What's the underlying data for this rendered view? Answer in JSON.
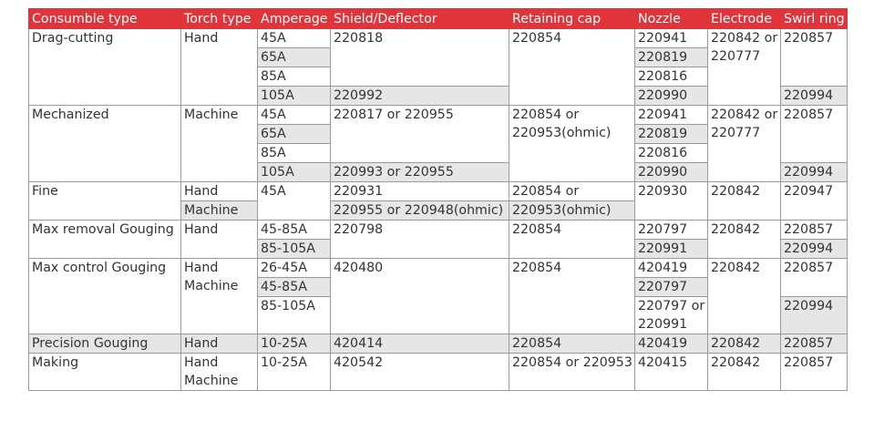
{
  "headers": [
    "Consumble type",
    "Torch type",
    "Amperage",
    "Shield/Deflector",
    "Retaining cap",
    "Nozzle",
    "Electrode",
    "Swirl ring"
  ],
  "drag": {
    "type": "Drag-cutting",
    "torch": "Hand",
    "amps": [
      "45A",
      "65A",
      "85A",
      "105A"
    ],
    "shield_a": "220818",
    "shield_b": "220992",
    "cap": "220854",
    "nozzles": [
      "220941",
      "220819",
      "220816",
      "220990"
    ],
    "electrode": [
      "220842 or",
      "220777"
    ],
    "swirl_a": "220857",
    "swirl_b": "220994"
  },
  "mech": {
    "type": "Mechanized",
    "torch": "Machine",
    "amps": [
      "45A",
      "65A",
      "85A",
      "105A"
    ],
    "shield_a": "220817 or 220955",
    "shield_b": "220993 or 220955",
    "cap": [
      "220854 or",
      "220953(ohmic)"
    ],
    "nozzles": [
      "220941",
      "220819",
      "220816",
      "220990"
    ],
    "electrode": [
      "220842 or",
      "220777"
    ],
    "swirl_a": "220857",
    "swirl_b": "220994"
  },
  "fine": {
    "type": "Fine",
    "torch_a": "Hand",
    "torch_b": "Machine",
    "amp": "45A",
    "shield_a": "220931",
    "shield_b": "220955 or 220948(ohmic)",
    "cap_a": "220854 or",
    "cap_b": "220953(ohmic)",
    "nozzle": "220930",
    "electrode": "220842",
    "swirl": "220947"
  },
  "maxrem": {
    "type": "Max removal Gouging",
    "torch": "Hand",
    "amp_a": "45-85A",
    "amp_b": "85-105A",
    "shield": "220798",
    "cap": "220854",
    "nozzle_a": "220797",
    "nozzle_b": "220991",
    "electrode": "220842",
    "swirl_a": "220857",
    "swirl_b": "220994"
  },
  "maxctl": {
    "type": "Max control Gouging",
    "torch_a": "Hand",
    "torch_b": "Machine",
    "amps": [
      "26-45A",
      "45-85A",
      "85-105A"
    ],
    "shield": "420480",
    "cap": "220854",
    "nozzle_a": "420419",
    "nozzle_b": "220797",
    "nozzle_c": [
      "220797 or",
      "220991"
    ],
    "electrode": "220842",
    "swirl_a": "220857",
    "swirl_b": "220994"
  },
  "prec": {
    "type": "Precision Gouging",
    "torch": "Hand",
    "amp": "10-25A",
    "shield": "420414",
    "cap": "220854",
    "nozzle": "420419",
    "electrode": "220842",
    "swirl": "220857"
  },
  "mark": {
    "type": "Making",
    "torch_a": "Hand",
    "torch_b": "Machine",
    "amp": "10-25A",
    "shield": "420542",
    "cap": "220854 or 220953",
    "nozzle": "420415",
    "electrode": "220842",
    "swirl": "220857"
  }
}
